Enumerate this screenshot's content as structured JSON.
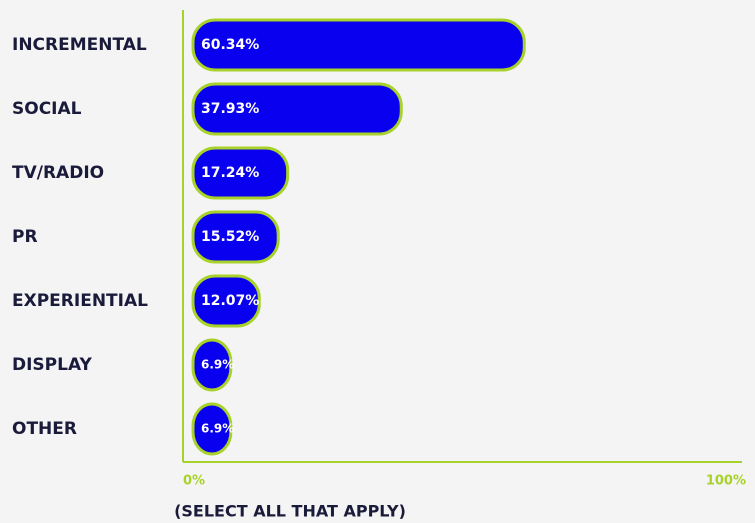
{
  "chart_data": {
    "type": "bar",
    "orientation": "horizontal",
    "categories": [
      "INCREMENTAL",
      "SOCIAL",
      "TV/RADIO",
      "PR",
      "EXPERIENTIAL",
      "DISPLAY",
      "OTHER"
    ],
    "values": [
      60.34,
      37.93,
      17.24,
      15.52,
      12.07,
      6.9,
      6.9
    ],
    "value_labels": [
      "60.34%",
      "37.93%",
      "17.24%",
      "15.52%",
      "12.07%",
      "6.9%",
      "6.9%"
    ],
    "color": "#0a00f0",
    "edge_color": "#a8d22a",
    "xlim": [
      0,
      100
    ],
    "xticks": [
      {
        "value": 0,
        "label": "0%"
      },
      {
        "value": 100,
        "label": "100%"
      }
    ],
    "x_label": "(SELECT ALL THAT APPLY)"
  }
}
